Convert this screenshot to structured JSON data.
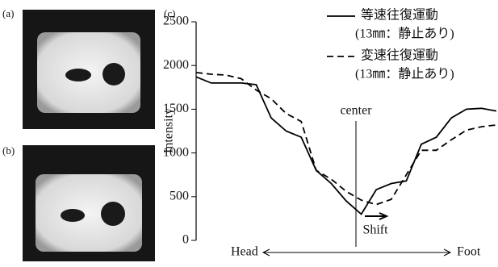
{
  "panels": {
    "a": "(a)",
    "b": "(b)",
    "c": "(c)"
  },
  "chart_data": {
    "type": "line",
    "y_label": "Intensity",
    "x_start_label": "Head",
    "x_end_label": "Foot",
    "annotations": {
      "center": "center",
      "shift": "Shift"
    },
    "categories": [
      null,
      null,
      null,
      null,
      null,
      null,
      null,
      null,
      null,
      null,
      null,
      null,
      null,
      null,
      null,
      null,
      null,
      null,
      null,
      null,
      null
    ],
    "series": [
      {
        "name": "等速往復運動",
        "condition": "(13㎜：静止あり)",
        "color": "#000000",
        "dash": "solid",
        "values": [
          1870,
          1800,
          1800,
          1800,
          1780,
          1400,
          1250,
          1180,
          800,
          650,
          450,
          300,
          580,
          650,
          680,
          1100,
          1180,
          1400,
          1500,
          1510,
          1480
        ]
      },
      {
        "name": "変速往復運動",
        "condition": "(13㎜：静止あり)",
        "color": "#000000",
        "dash": "dashed",
        "values": [
          1920,
          1900,
          1890,
          1850,
          1720,
          1620,
          1450,
          1360,
          800,
          700,
          560,
          460,
          410,
          470,
          750,
          1030,
          1030,
          1150,
          1260,
          1300,
          1320
        ]
      }
    ],
    "ylim": [
      0,
      2500
    ],
    "yticks": [
      0,
      500,
      1000,
      1500,
      2000,
      2500
    ]
  }
}
